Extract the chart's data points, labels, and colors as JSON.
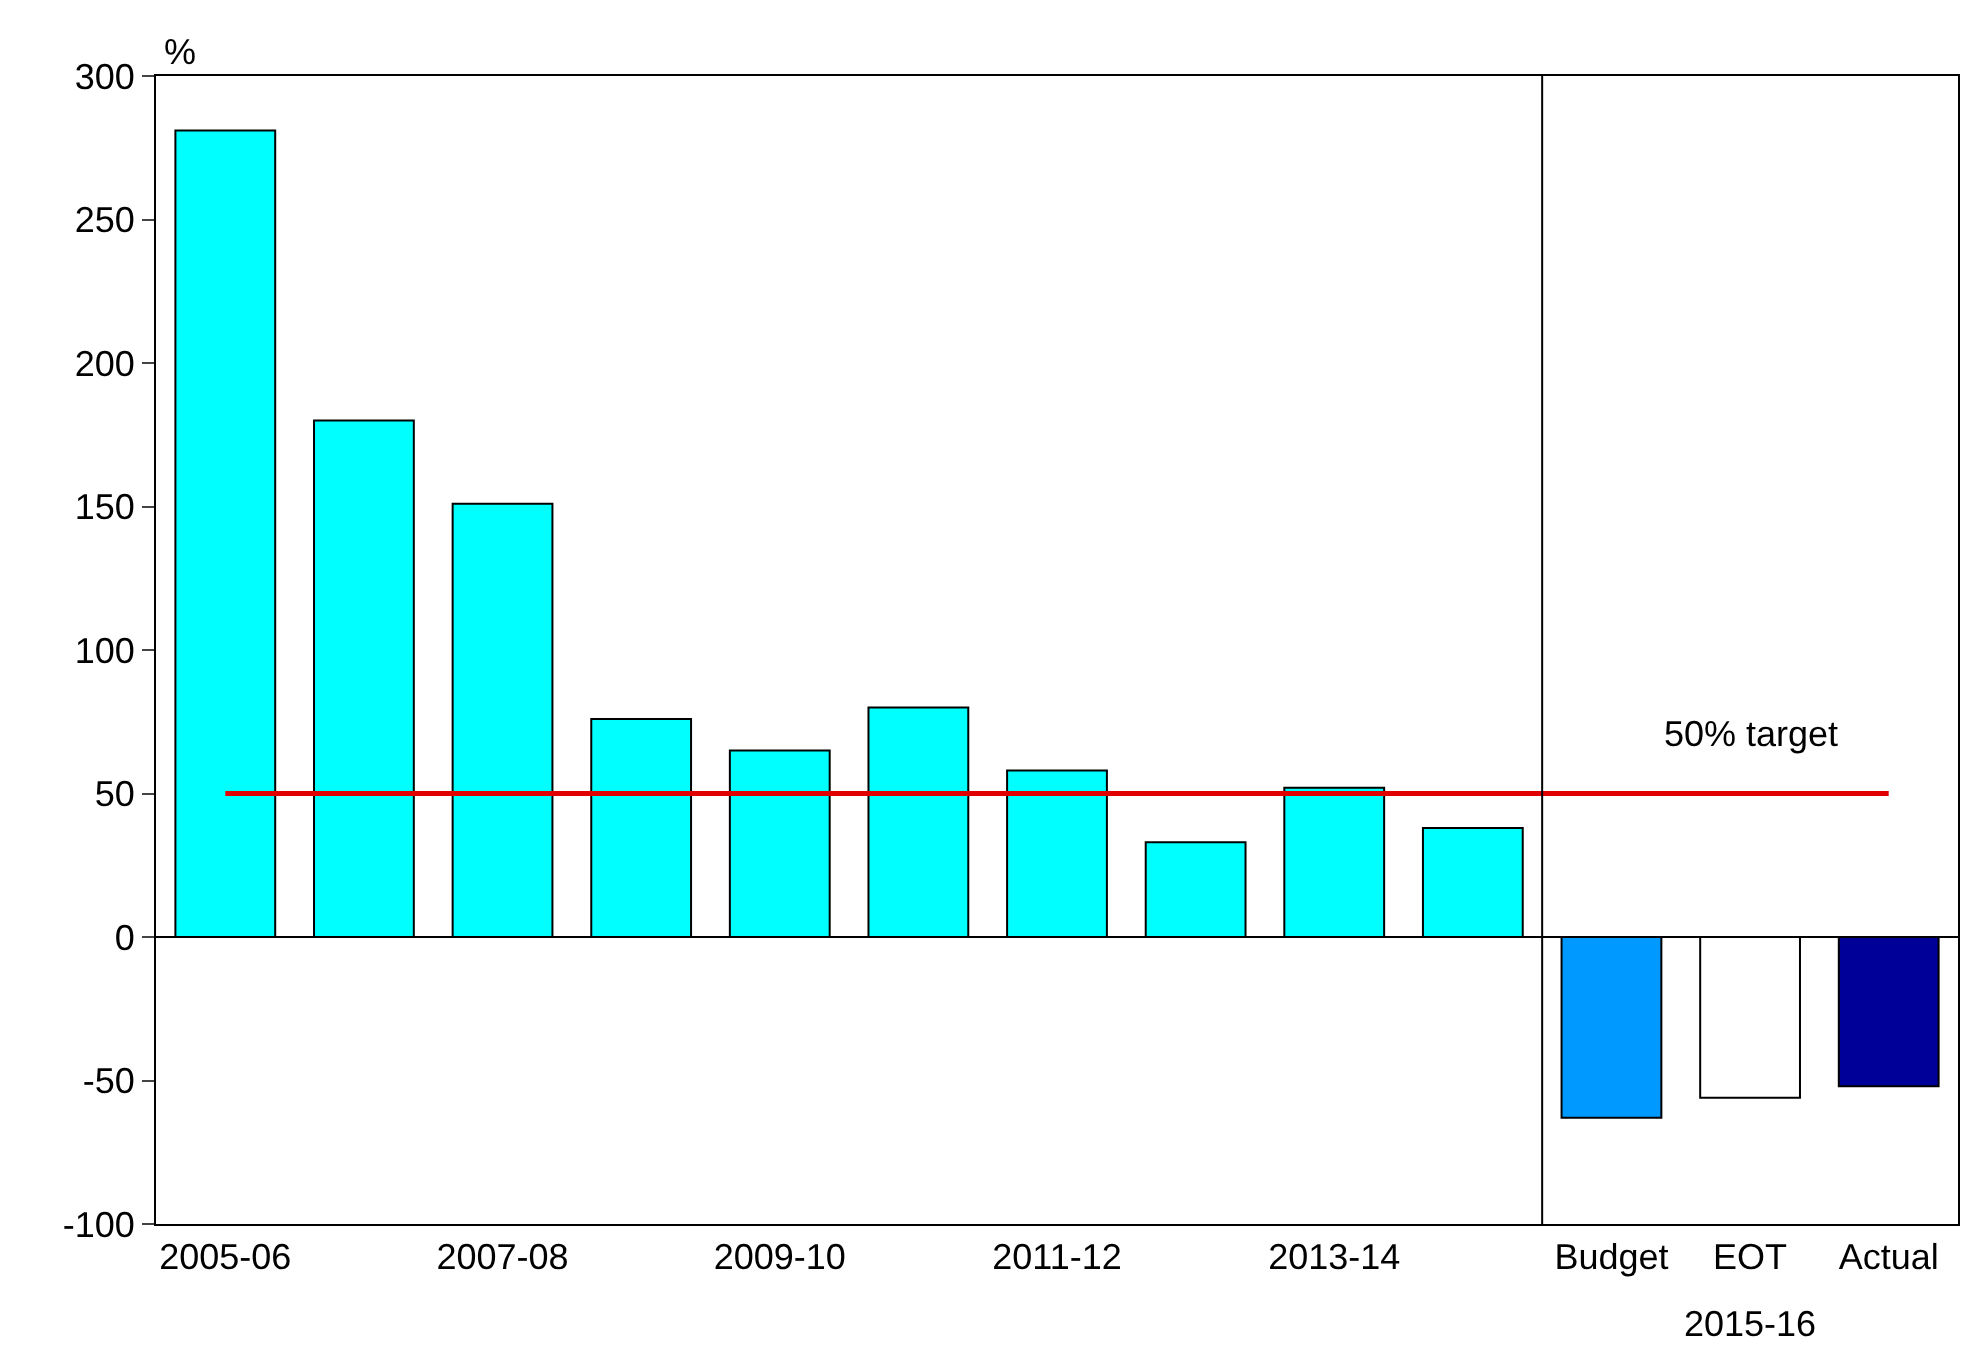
{
  "chart_data": {
    "type": "bar",
    "ylabel": "%",
    "categories": [
      "2005-06",
      null,
      "2007-08",
      null,
      "2009-10",
      null,
      "2011-12",
      null,
      "2013-14",
      null,
      "Budget",
      "EOT",
      "Actual"
    ],
    "values": [
      281,
      180,
      151,
      76,
      65,
      80,
      58,
      33,
      52,
      38,
      -63,
      -56,
      -52
    ],
    "colors": [
      "#00ffff",
      "#00ffff",
      "#00ffff",
      "#00ffff",
      "#00ffff",
      "#00ffff",
      "#00ffff",
      "#00ffff",
      "#00ffff",
      "#00ffff",
      "#0099ff",
      "#ffffff",
      "#000099"
    ],
    "ylim": [
      -100,
      300
    ],
    "yticks": [
      -100,
      -50,
      0,
      50,
      100,
      150,
      200,
      250,
      300
    ],
    "ref_lines": [
      {
        "axis": "y",
        "value": 50,
        "label": "50% target",
        "color": "#e00000"
      }
    ],
    "annotations": [
      "2015-16"
    ]
  }
}
